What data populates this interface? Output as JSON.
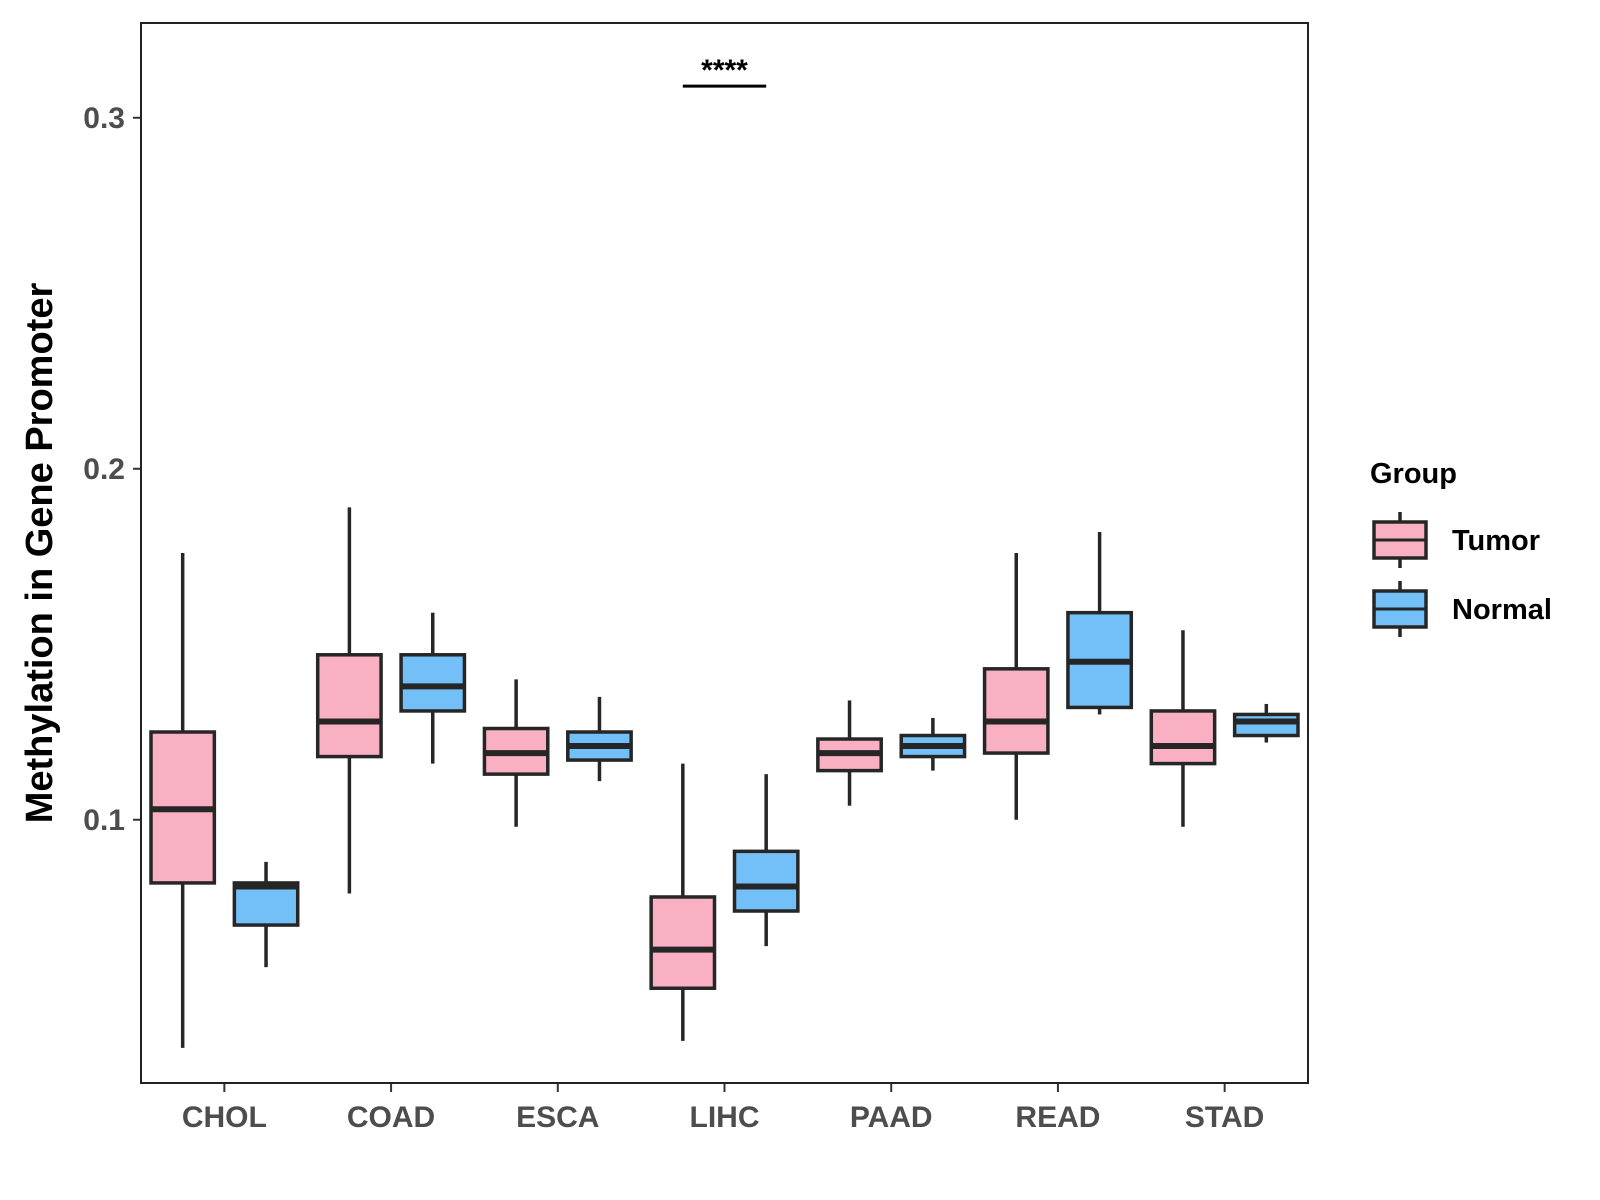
{
  "chart_data": {
    "type": "boxplot",
    "title": "",
    "xlabel": "",
    "ylabel": "Methylation in Gene Promoter",
    "ylim": [
      0.025,
      0.327
    ],
    "yticks": [
      0.1,
      0.2,
      0.3
    ],
    "ytick_labels": [
      "0.1",
      "0.2",
      "0.3"
    ],
    "categories": [
      "CHOL",
      "COAD",
      "ESCA",
      "LIHC",
      "PAAD",
      "READ",
      "STAD"
    ],
    "legend": {
      "title": "Group",
      "position": "right",
      "entries": [
        {
          "name": "Tumor",
          "color": "#f9b0c3"
        },
        {
          "name": "Normal",
          "color": "#73c0f8"
        }
      ]
    },
    "series": [
      {
        "name": "Tumor",
        "color": "#f9b0c3",
        "boxes": [
          {
            "category": "CHOL",
            "whisker_low": 0.035,
            "q1": 0.082,
            "median": 0.103,
            "q3": 0.125,
            "whisker_high": 0.176
          },
          {
            "category": "COAD",
            "whisker_low": 0.079,
            "q1": 0.118,
            "median": 0.128,
            "q3": 0.147,
            "whisker_high": 0.189
          },
          {
            "category": "ESCA",
            "whisker_low": 0.098,
            "q1": 0.113,
            "median": 0.119,
            "q3": 0.126,
            "whisker_high": 0.14
          },
          {
            "category": "LIHC",
            "whisker_low": 0.037,
            "q1": 0.052,
            "median": 0.063,
            "q3": 0.078,
            "whisker_high": 0.116
          },
          {
            "category": "PAAD",
            "whisker_low": 0.104,
            "q1": 0.114,
            "median": 0.119,
            "q3": 0.123,
            "whisker_high": 0.134
          },
          {
            "category": "READ",
            "whisker_low": 0.1,
            "q1": 0.119,
            "median": 0.128,
            "q3": 0.143,
            "whisker_high": 0.176
          },
          {
            "category": "STAD",
            "whisker_low": 0.098,
            "q1": 0.116,
            "median": 0.121,
            "q3": 0.131,
            "whisker_high": 0.154
          }
        ]
      },
      {
        "name": "Normal",
        "color": "#73c0f8",
        "boxes": [
          {
            "category": "CHOL",
            "whisker_low": 0.058,
            "q1": 0.07,
            "median": 0.081,
            "q3": 0.082,
            "whisker_high": 0.088
          },
          {
            "category": "COAD",
            "whisker_low": 0.116,
            "q1": 0.131,
            "median": 0.138,
            "q3": 0.147,
            "whisker_high": 0.159
          },
          {
            "category": "ESCA",
            "whisker_low": 0.111,
            "q1": 0.117,
            "median": 0.121,
            "q3": 0.125,
            "whisker_high": 0.135
          },
          {
            "category": "LIHC",
            "whisker_low": 0.064,
            "q1": 0.074,
            "median": 0.081,
            "q3": 0.091,
            "whisker_high": 0.113
          },
          {
            "category": "PAAD",
            "whisker_low": 0.114,
            "q1": 0.118,
            "median": 0.121,
            "q3": 0.124,
            "whisker_high": 0.129
          },
          {
            "category": "READ",
            "whisker_low": 0.13,
            "q1": 0.132,
            "median": 0.145,
            "q3": 0.159,
            "whisker_high": 0.182
          },
          {
            "category": "STAD",
            "whisker_low": 0.122,
            "q1": 0.124,
            "median": 0.128,
            "q3": 0.13,
            "whisker_high": 0.133
          }
        ]
      }
    ],
    "annotations": [
      {
        "category": "LIHC",
        "text": "****",
        "y": 0.309
      }
    ]
  }
}
